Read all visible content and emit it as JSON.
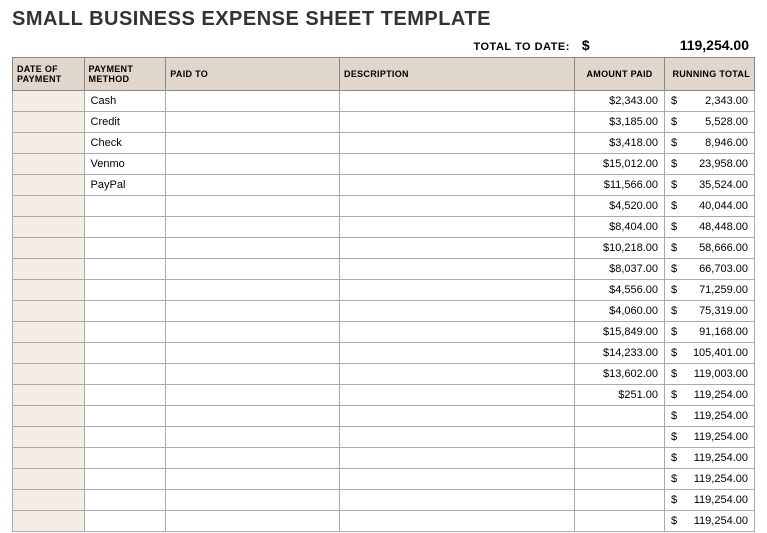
{
  "title": "SMALL BUSINESS EXPENSE SHEET TEMPLATE",
  "total": {
    "label": "TOTAL TO DATE:",
    "currency": "$",
    "value": "119,254.00"
  },
  "columns": [
    "DATE OF PAYMENT",
    "PAYMENT METHOD",
    "PAID TO",
    "DESCRIPTION",
    "AMOUNT PAID",
    "RUNNING TOTAL"
  ],
  "header_bg": "#e0d6cc",
  "date_col_bg": "#f3ede6",
  "border_color": "#aaaaaa",
  "header_border_color": "#888888",
  "rows": [
    {
      "date": "",
      "method": "Cash",
      "paidto": "",
      "desc": "",
      "amount": "$2,343.00",
      "running": "2,343.00"
    },
    {
      "date": "",
      "method": "Credit",
      "paidto": "",
      "desc": "",
      "amount": "$3,185.00",
      "running": "5,528.00"
    },
    {
      "date": "",
      "method": "Check",
      "paidto": "",
      "desc": "",
      "amount": "$3,418.00",
      "running": "8,946.00"
    },
    {
      "date": "",
      "method": "Venmo",
      "paidto": "",
      "desc": "",
      "amount": "$15,012.00",
      "running": "23,958.00"
    },
    {
      "date": "",
      "method": "PayPal",
      "paidto": "",
      "desc": "",
      "amount": "$11,566.00",
      "running": "35,524.00"
    },
    {
      "date": "",
      "method": "",
      "paidto": "",
      "desc": "",
      "amount": "$4,520.00",
      "running": "40,044.00"
    },
    {
      "date": "",
      "method": "",
      "paidto": "",
      "desc": "",
      "amount": "$8,404.00",
      "running": "48,448.00"
    },
    {
      "date": "",
      "method": "",
      "paidto": "",
      "desc": "",
      "amount": "$10,218.00",
      "running": "58,666.00"
    },
    {
      "date": "",
      "method": "",
      "paidto": "",
      "desc": "",
      "amount": "$8,037.00",
      "running": "66,703.00"
    },
    {
      "date": "",
      "method": "",
      "paidto": "",
      "desc": "",
      "amount": "$4,556.00",
      "running": "71,259.00"
    },
    {
      "date": "",
      "method": "",
      "paidto": "",
      "desc": "",
      "amount": "$4,060.00",
      "running": "75,319.00"
    },
    {
      "date": "",
      "method": "",
      "paidto": "",
      "desc": "",
      "amount": "$15,849.00",
      "running": "91,168.00"
    },
    {
      "date": "",
      "method": "",
      "paidto": "",
      "desc": "",
      "amount": "$14,233.00",
      "running": "105,401.00"
    },
    {
      "date": "",
      "method": "",
      "paidto": "",
      "desc": "",
      "amount": "$13,602.00",
      "running": "119,003.00"
    },
    {
      "date": "",
      "method": "",
      "paidto": "",
      "desc": "",
      "amount": "$251.00",
      "running": "119,254.00"
    },
    {
      "date": "",
      "method": "",
      "paidto": "",
      "desc": "",
      "amount": "",
      "running": "119,254.00"
    },
    {
      "date": "",
      "method": "",
      "paidto": "",
      "desc": "",
      "amount": "",
      "running": "119,254.00"
    },
    {
      "date": "",
      "method": "",
      "paidto": "",
      "desc": "",
      "amount": "",
      "running": "119,254.00"
    },
    {
      "date": "",
      "method": "",
      "paidto": "",
      "desc": "",
      "amount": "",
      "running": "119,254.00"
    },
    {
      "date": "",
      "method": "",
      "paidto": "",
      "desc": "",
      "amount": "",
      "running": "119,254.00"
    },
    {
      "date": "",
      "method": "",
      "paidto": "",
      "desc": "",
      "amount": "",
      "running": "119,254.00"
    }
  ],
  "running_currency": "$"
}
